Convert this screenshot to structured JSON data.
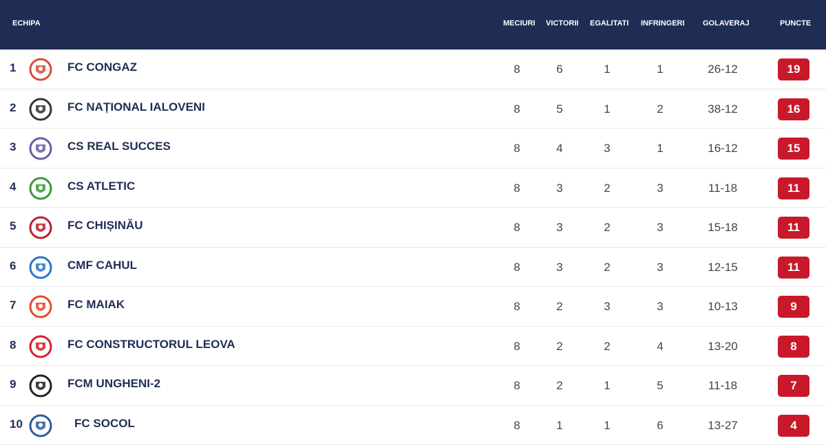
{
  "headers": {
    "team": "ECHIPA",
    "played": "MECIURI",
    "wins": "VICTORII",
    "draws": "EGALITATI",
    "losses": "INFRINGERI",
    "goals": "GOLAVERAJ",
    "points": "PUNCTE"
  },
  "rows": [
    {
      "rank": "1",
      "team": "FC CONGAZ",
      "played": "8",
      "wins": "6",
      "draws": "1",
      "losses": "1",
      "goals": "26-12",
      "points": "19",
      "logo": "congaz-logo",
      "color": "#d94a3a"
    },
    {
      "rank": "2",
      "team": "FC NAȚIONAL IALOVENI",
      "played": "8",
      "wins": "5",
      "draws": "1",
      "losses": "2",
      "goals": "38-12",
      "points": "16",
      "logo": "national-logo",
      "color": "#333333"
    },
    {
      "rank": "3",
      "team": "CS REAL SUCCES",
      "played": "8",
      "wins": "4",
      "draws": "3",
      "losses": "1",
      "goals": "16-12",
      "points": "15",
      "logo": "real-succes-logo",
      "color": "#6b5aa6"
    },
    {
      "rank": "4",
      "team": "CS ATLETIC",
      "played": "8",
      "wins": "3",
      "draws": "2",
      "losses": "3",
      "goals": "11-18",
      "points": "11",
      "logo": "atletic-logo",
      "color": "#3a9a32"
    },
    {
      "rank": "5",
      "team": "FC CHIȘINĂU",
      "played": "8",
      "wins": "3",
      "draws": "2",
      "losses": "3",
      "goals": "15-18",
      "points": "11",
      "logo": "chisinau-logo",
      "color": "#b8202d"
    },
    {
      "rank": "6",
      "team": "CMF CAHUL",
      "played": "8",
      "wins": "3",
      "draws": "2",
      "losses": "3",
      "goals": "12-15",
      "points": "11",
      "logo": "cahul-logo",
      "color": "#2b74c7"
    },
    {
      "rank": "7",
      "team": "FC MAIAK",
      "played": "8",
      "wins": "2",
      "draws": "3",
      "losses": "3",
      "goals": "10-13",
      "points": "9",
      "logo": "maiak-logo",
      "color": "#e24b2b"
    },
    {
      "rank": "8",
      "team": "FC CONSTRUCTORUL LEOVA",
      "played": "8",
      "wins": "2",
      "draws": "2",
      "losses": "4",
      "goals": "13-20",
      "points": "8",
      "logo": "leova-logo",
      "color": "#d4202d"
    },
    {
      "rank": "9",
      "team": "FCM UNGHENI-2",
      "played": "8",
      "wins": "2",
      "draws": "1",
      "losses": "5",
      "goals": "11-18",
      "points": "7",
      "logo": "ungheni-logo",
      "color": "#222222"
    },
    {
      "rank": "10",
      "team": "FC SOCOL",
      "played": "8",
      "wins": "1",
      "draws": "1",
      "losses": "6",
      "goals": "13-27",
      "points": "4",
      "logo": "socol-logo",
      "color": "#2d5aa0"
    }
  ],
  "colors": {
    "header_bg": "#1f2d55",
    "points_bg": "#c8192b",
    "text": "#1f2d55"
  }
}
